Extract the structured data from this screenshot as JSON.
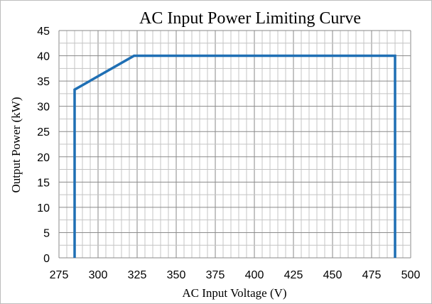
{
  "chart_data": {
    "type": "line",
    "title": "AC Input Power Limiting Curve",
    "xlabel": "AC Input Voltage (V)",
    "ylabel": "Output Power (kW)",
    "xlim": [
      275,
      500
    ],
    "ylim": [
      0,
      45
    ],
    "x_ticks": [
      "275",
      "300",
      "325",
      "350",
      "375",
      "400",
      "425",
      "450",
      "475",
      "500"
    ],
    "y_ticks": [
      "0",
      "5",
      "10",
      "15",
      "20",
      "25",
      "30",
      "35",
      "40",
      "45"
    ],
    "x_minor_step": 5,
    "y_minor_step": 2.5,
    "grid": true,
    "series": [
      {
        "color": "#1f6fb4",
        "points": [
          [
            285,
            0
          ],
          [
            285,
            33.3
          ],
          [
            323,
            40
          ],
          [
            490,
            40
          ],
          [
            490,
            0
          ]
        ]
      }
    ]
  }
}
